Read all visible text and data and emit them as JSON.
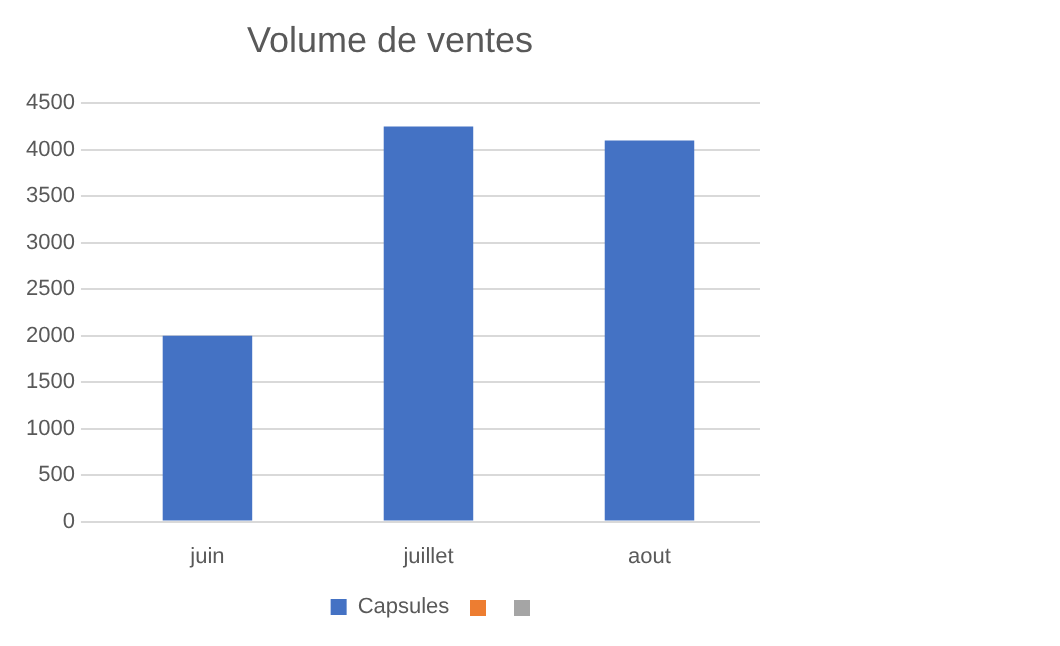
{
  "chart_data": {
    "type": "bar",
    "title": "Volume de ventes",
    "categories": [
      "juin",
      "juillet",
      "aout"
    ],
    "series": [
      {
        "name": "Capsules",
        "color": "#4472c4",
        "values": [
          2000,
          4250,
          4100
        ]
      },
      {
        "color": "#ed7d31",
        "values": [
          null,
          null,
          null
        ]
      },
      {
        "color": "#a5a5a5",
        "values": [
          null,
          null,
          null
        ]
      }
    ],
    "ylim": [
      0,
      4500
    ],
    "yticks": [
      0,
      500,
      1000,
      1500,
      2000,
      2500,
      3000,
      3500,
      4000,
      4500
    ],
    "grid": "y",
    "legend": "bottom"
  }
}
